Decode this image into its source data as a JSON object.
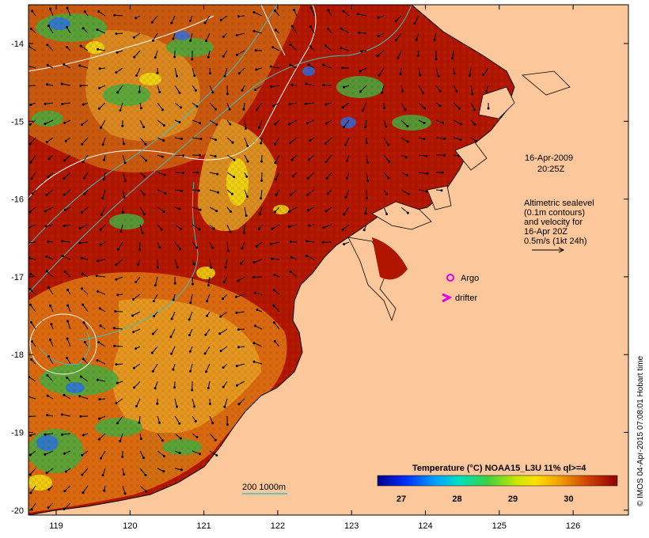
{
  "map": {
    "timestamp_date": "16-Apr-2009",
    "timestamp_time": "20:25Z",
    "legend_lines": [
      "Altimetric sealevel",
      "(0.1m contours)",
      "and velocity for",
      "16-Apr 20Z",
      "0.5m/s (1kt 24h)"
    ],
    "argo_label": "Argo",
    "drifter_label": "drifter",
    "bathymetry_label": "200  1000m",
    "colorbar_title": "Temperature (°C) NOAA15_L3U 11% ql>=4",
    "colorbar_ticks": [
      "27",
      "28",
      "29",
      "30"
    ],
    "credit": "© IMOS 04-Apr-2015 07:08:01 Hobart time",
    "lon_ticks": [
      "119",
      "120",
      "121",
      "122",
      "123",
      "124",
      "125",
      "126"
    ],
    "lat_ticks": [
      "-14",
      "-15",
      "-16",
      "-17",
      "-18",
      "-19",
      "-20"
    ],
    "colors": {
      "land": "#fcc79a",
      "sst_warm": "#b01500",
      "sst_mid": "#d86a10",
      "sst_cool": "#e8a818",
      "contour": "#ffffff",
      "bathy_line": "#40c0c0",
      "argo": "#e000e0",
      "drifter": "#e000e0"
    }
  }
}
